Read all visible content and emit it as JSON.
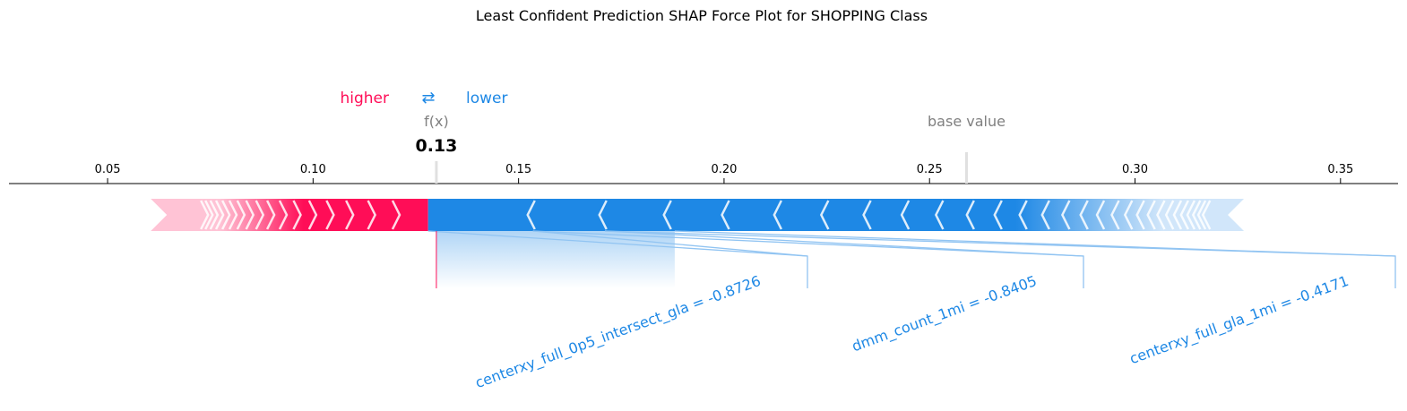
{
  "chart_data": {
    "type": "force",
    "title": "Least Confident Prediction SHAP Force Plot for SHOPPING Class",
    "legend": {
      "higher": "higher",
      "arrow": "⇄",
      "lower": "lower"
    },
    "output_label": "f(x)",
    "output_value": 0.13,
    "output_value_text": "0.13",
    "base_label": "base value",
    "base_value": 0.259,
    "xlim": [
      0.026,
      0.364
    ],
    "ticks": [
      0.05,
      0.1,
      0.15,
      0.2,
      0.25,
      0.3,
      0.35
    ],
    "tick_labels": [
      "0.05",
      "0.10",
      "0.15",
      "0.20",
      "0.25",
      "0.30",
      "0.35"
    ],
    "positive_bar": {
      "from": 0.0605,
      "to": 0.128,
      "color": "#ff0d57"
    },
    "negative_bar": {
      "from": 0.128,
      "to": 0.3265,
      "color": "#1e88e5"
    },
    "labeled_features": [
      {
        "label": "centerxy_full_0p5_intersect_gla = -0.8726",
        "from": 0.128,
        "to": 0.1535
      },
      {
        "label": "dmm_count_1mi = -0.8405",
        "from": 0.1535,
        "to": 0.171
      },
      {
        "label": "centerxy_full_gla_1mi = -0.4171",
        "from": 0.171,
        "to": 0.188
      }
    ],
    "colors": {
      "higher": "#ff0d57",
      "lower": "#1e88e5",
      "label_line": "#91c4f2",
      "light_pink": "#ffc3d5",
      "light_blue": "#d1e6fa"
    }
  }
}
